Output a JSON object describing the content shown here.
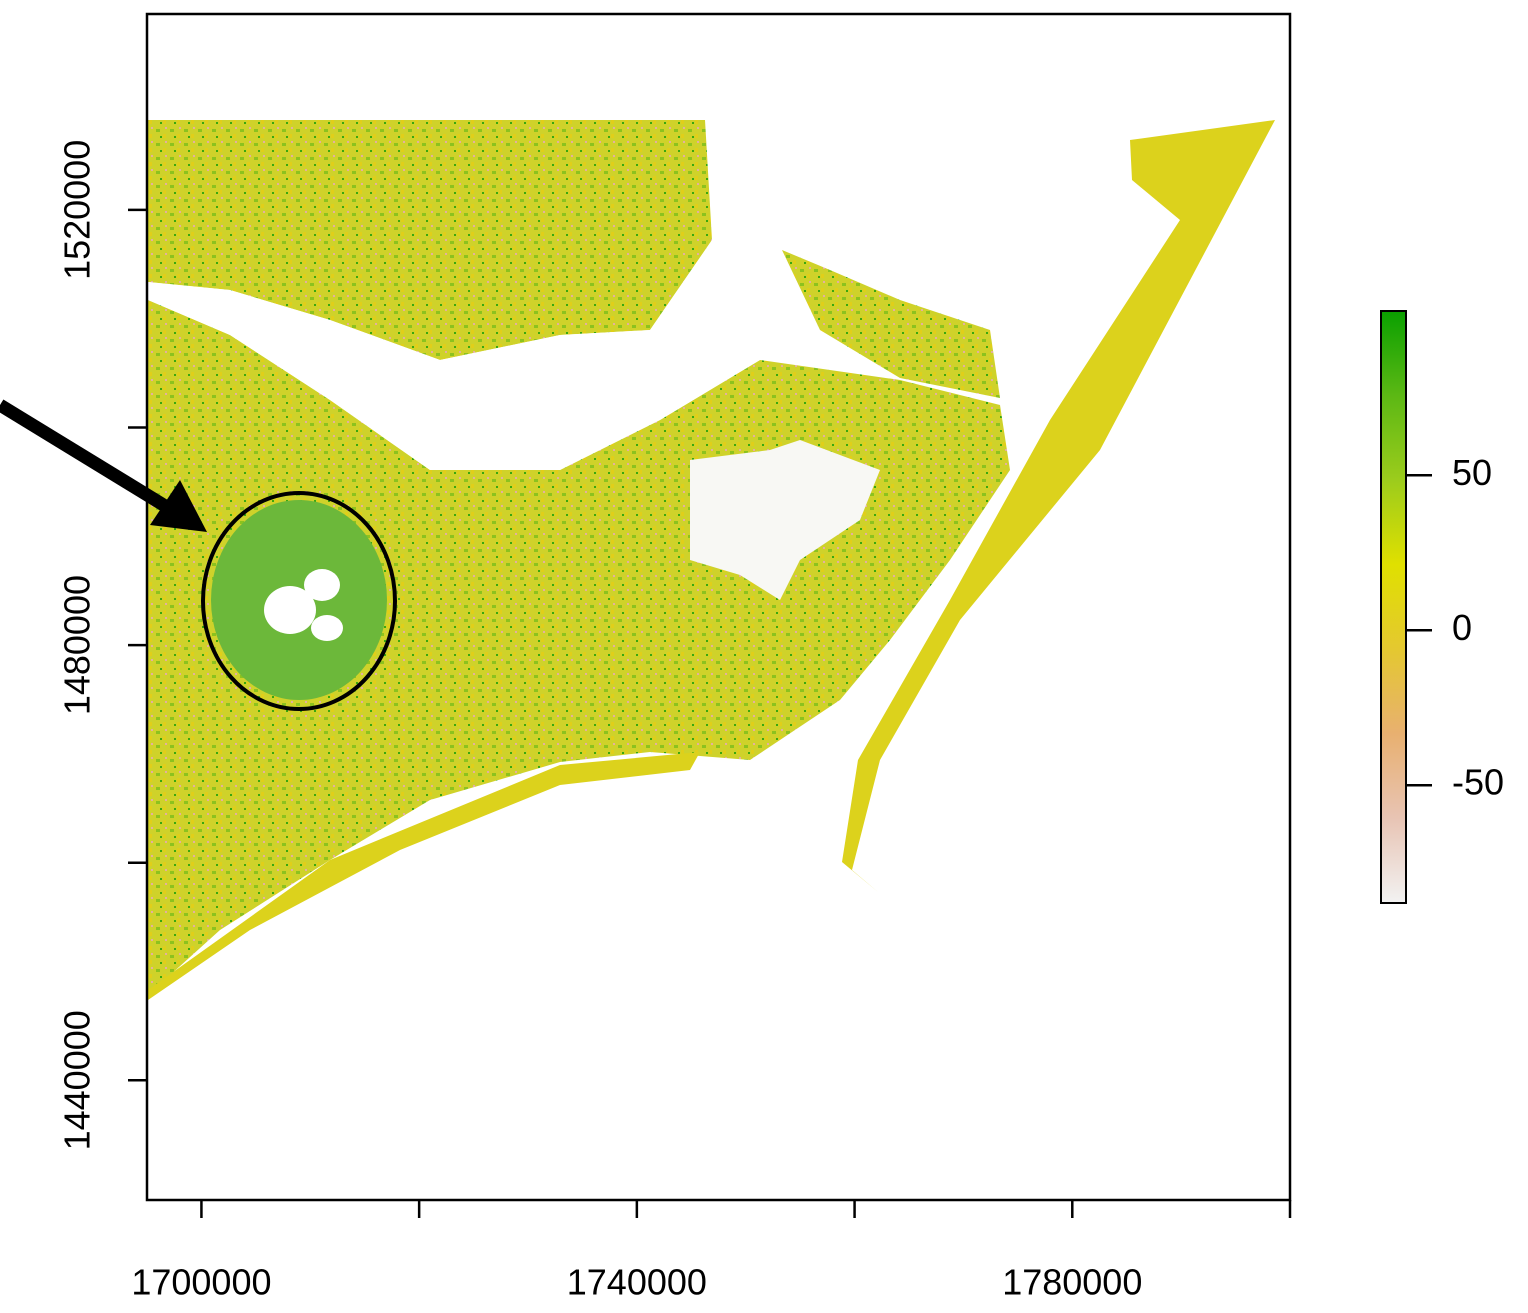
{
  "chart_data": {
    "type": "raster",
    "xlim": [
      1695000,
      1800000
    ],
    "ylim": [
      1429000,
      1538000
    ],
    "xticks": [
      1700000,
      {
        "value": 1720000,
        "label": null
      },
      1740000,
      {
        "value": 1760000,
        "label": null
      },
      1780000,
      {
        "value": 1800000,
        "label": null
      }
    ],
    "yticks": [
      1440000,
      {
        "value": 1460000,
        "label": null
      },
      1480000,
      {
        "value": 1500000,
        "label": null
      },
      1520000
    ],
    "colorbar": {
      "lim": [
        -88,
        103
      ],
      "ticks": [
        -50,
        0,
        50
      ],
      "colors": [
        "#f2f2f2",
        "#e8c4b4",
        "#e8b070",
        "#e4c830",
        "#e0e000",
        "#9ccc1c",
        "#5cb814",
        "#0aa000"
      ]
    }
  }
}
